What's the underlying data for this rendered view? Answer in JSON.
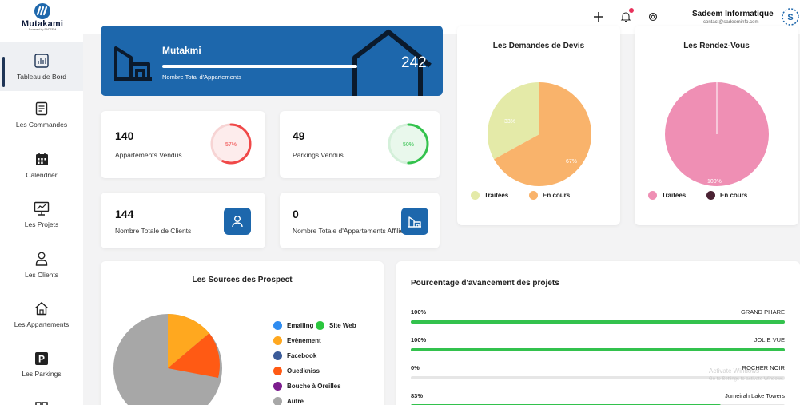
{
  "header": {
    "logo_name": "Mutakami",
    "logo_sub": "Powered by SADEEM",
    "add_icon": "plus-icon",
    "bell_icon": "bell-icon",
    "settings_icon": "gear-icon",
    "company_name": "Sadeem Informatique",
    "company_email": "contact@sadeeminfo.com"
  },
  "sidebar": {
    "items": [
      {
        "label": "Tableau de Bord",
        "icon": "dashboard-icon"
      },
      {
        "label": "Les Commandes",
        "icon": "orders-icon"
      },
      {
        "label": "Calendrier",
        "icon": "calendar-icon"
      },
      {
        "label": "Les Projets",
        "icon": "projects-icon"
      },
      {
        "label": "Les Clients",
        "icon": "user-icon"
      },
      {
        "label": "Les Appartements",
        "icon": "house-icon"
      },
      {
        "label": "Les Parkings",
        "icon": "parking-icon"
      }
    ]
  },
  "banner": {
    "title": "Mutakmi",
    "subtitle": "Nombre Total d'Appartements",
    "value": "242"
  },
  "stats": {
    "apartments_sold": {
      "value": "140",
      "label": "Appartements Vendus",
      "percent": "57%",
      "fraction": 0.57
    },
    "parkings_sold": {
      "value": "49",
      "label": "Parkings Vendus",
      "percent": "50%",
      "fraction": 0.5
    },
    "clients": {
      "value": "144",
      "label": "Nombre Totale de Clients"
    },
    "affiliated": {
      "value": "0",
      "label": "Nombre Totale d'Appartements Affiliés"
    }
  },
  "devis": {
    "title": "Les Demandes de Devis",
    "slice_labels": [
      "33%",
      "67%"
    ],
    "legend": [
      "Traitées",
      "En cours"
    ]
  },
  "rdv": {
    "title": "Les Rendez-Vous",
    "slice_labels": [
      "100%"
    ],
    "legend": [
      "Traitées",
      "En cours"
    ]
  },
  "sources": {
    "title": "Les Sources des Prospect",
    "legend": [
      "Emailing",
      "Site Web",
      "Evènement",
      "Facebook",
      "Ouedkniss",
      "Bouche à Oreilles",
      "Autre"
    ]
  },
  "projects": {
    "title": "Pourcentage d'avancement des projets",
    "rows": [
      {
        "percent": "100%",
        "name": "GRAND PHARE",
        "fraction": 1.0
      },
      {
        "percent": "100%",
        "name": "JOLIE VUE",
        "fraction": 1.0
      },
      {
        "percent": "0%",
        "name": "ROCHER NOIR",
        "fraction": 0.0
      },
      {
        "percent": "83%",
        "name": "Jumeirah Lake Towers",
        "fraction": 0.83
      }
    ]
  },
  "watermark": {
    "line1": "Activate Windows",
    "line2": "Go to Settings to activate Windows."
  },
  "colors": {
    "primary": "#1d67ac",
    "red_ring": "#f04848",
    "green_ring": "#33c24d",
    "devis_done": "#e4eaa8",
    "devis_progress": "#f9b36b",
    "rdv_done": "#ef8fb4",
    "rdv_progress": "#4a2233",
    "emailing": "#2f8cf0",
    "site_web": "#2bc63e",
    "evenement": "#ffa81f",
    "facebook": "#3b5b99",
    "ouedkniss": "#ff5a14",
    "bouche": "#7c1d8e",
    "autre": "#a7a7a7"
  }
}
